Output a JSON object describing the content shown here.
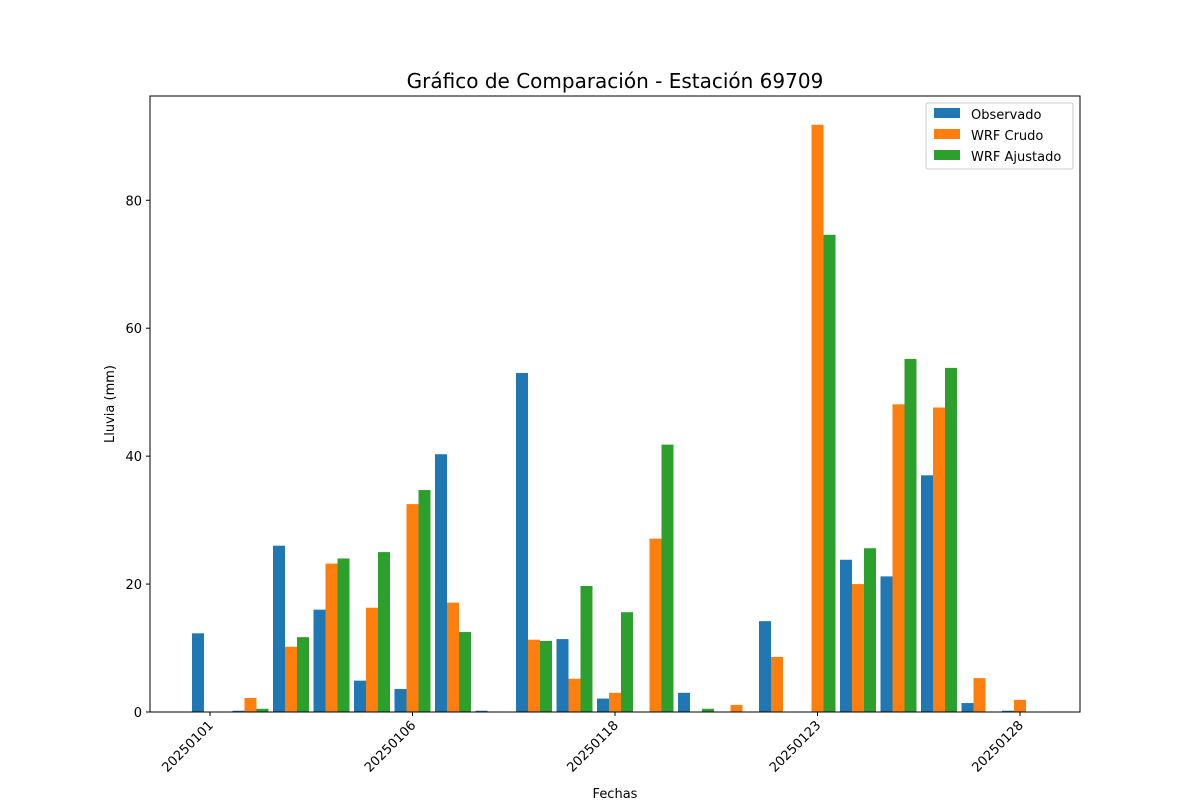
{
  "chart_data": {
    "type": "bar",
    "title": "Gráfico de Comparación - Estación 69709",
    "xlabel": "Fechas",
    "ylabel": "Lluvia (mm)",
    "ylim": [
      0,
      96.3
    ],
    "yticks": [
      0,
      20,
      40,
      60,
      80
    ],
    "xticks": [
      {
        "label": "20250101",
        "index": 0
      },
      {
        "label": "20250106",
        "index": 5
      },
      {
        "label": "20250118",
        "index": 10
      },
      {
        "label": "20250123",
        "index": 15
      },
      {
        "label": "20250128",
        "index": 20
      }
    ],
    "category_count": 21,
    "legend_position": "top-right",
    "grid": false,
    "series": [
      {
        "name": "Observado",
        "color": "#1f77b4",
        "values": [
          12.3,
          0.2,
          26.0,
          16.0,
          4.9,
          3.6,
          40.3,
          0.2,
          53.0,
          11.4,
          2.1,
          0,
          3.0,
          0,
          14.2,
          0,
          23.8,
          21.2,
          37.0,
          1.4,
          0.2
        ]
      },
      {
        "name": "WRF Crudo",
        "color": "#ff7f0e",
        "values": [
          0,
          2.2,
          10.2,
          23.2,
          16.3,
          32.5,
          17.1,
          0,
          11.3,
          5.2,
          3.0,
          27.1,
          0,
          1.1,
          8.6,
          91.8,
          20.0,
          48.1,
          47.6,
          5.3,
          1.9
        ]
      },
      {
        "name": "WRF Ajustado",
        "color": "#2ca02c",
        "values": [
          0,
          0.5,
          11.7,
          24.0,
          25.0,
          34.7,
          12.5,
          0,
          11.1,
          19.7,
          15.6,
          41.8,
          0.5,
          0,
          0,
          74.6,
          25.6,
          55.2,
          53.8,
          0,
          0
        ]
      }
    ]
  }
}
